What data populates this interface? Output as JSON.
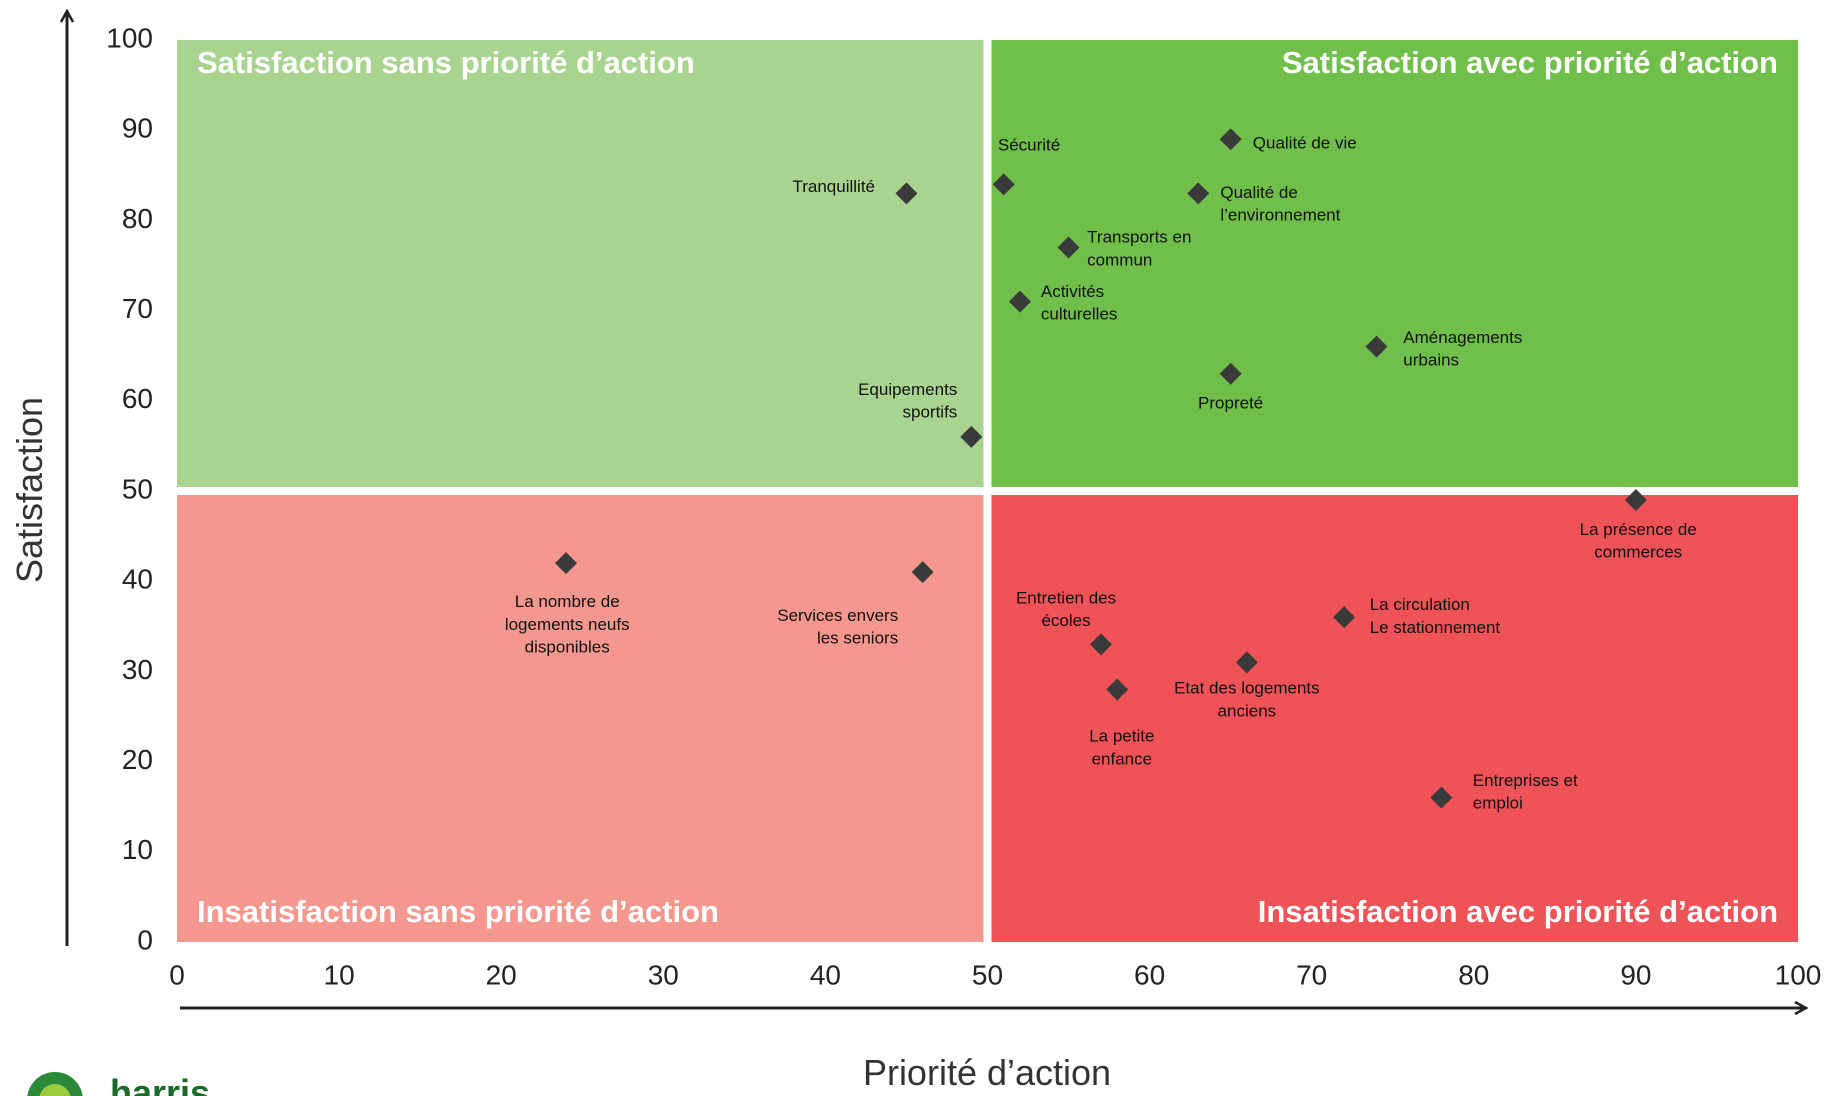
{
  "chart_data": {
    "type": "scatter",
    "xlabel": "Priorité d’action",
    "ylabel": "Satisfaction",
    "xlim": [
      0,
      100
    ],
    "ylim": [
      0,
      100
    ],
    "xticks": [
      0,
      10,
      20,
      30,
      40,
      50,
      60,
      70,
      80,
      90,
      100
    ],
    "yticks": [
      0,
      10,
      20,
      30,
      40,
      50,
      60,
      70,
      80,
      90,
      100
    ],
    "x_split": 50,
    "y_split": 50,
    "quadrants": [
      {
        "label": "Satisfaction sans priorité d’action",
        "color": "#a9d48f"
      },
      {
        "label": "Satisfaction avec priorité d’action",
        "color": "#70bf4a"
      },
      {
        "label": "Insatisfaction sans priorité d’action",
        "color": "#f4988f"
      },
      {
        "label": "Insatisfaction avec priorité d’action",
        "color": "#ef5357"
      }
    ],
    "color": "#3a3a3a",
    "x": [
      45,
      51,
      65,
      63,
      55,
      52,
      74,
      65,
      49,
      90,
      24,
      46,
      57,
      58,
      72,
      66,
      78
    ],
    "values": [
      83,
      84,
      89,
      83,
      77,
      71,
      66,
      63,
      56,
      49,
      42,
      41,
      33,
      28,
      36,
      31,
      16
    ],
    "labels": [
      [
        "Tranquillité"
      ],
      [
        "Sécurité"
      ],
      [
        "Qualité de vie"
      ],
      [
        "Qualité de",
        "l’environnement"
      ],
      [
        "Transports en",
        "commun"
      ],
      [
        "Activités",
        "culturelles"
      ],
      [
        "Aménagements",
        "urbains"
      ],
      [
        "Propreté"
      ],
      [
        "Equipements",
        "sportifs"
      ],
      [
        "La présence de",
        "commerces"
      ],
      [
        "La nombre de",
        "logements neufs",
        "disponibles"
      ],
      [
        "Services envers",
        "les seniors"
      ],
      [
        "Entretien des",
        "écoles"
      ],
      [
        "La petite",
        "enfance"
      ],
      [
        "La circulation",
        "Le stationnement"
      ],
      [
        "Etat des logements",
        "anciens"
      ],
      [
        "Entreprises et",
        "emploi"
      ]
    ]
  },
  "logo": "harris"
}
